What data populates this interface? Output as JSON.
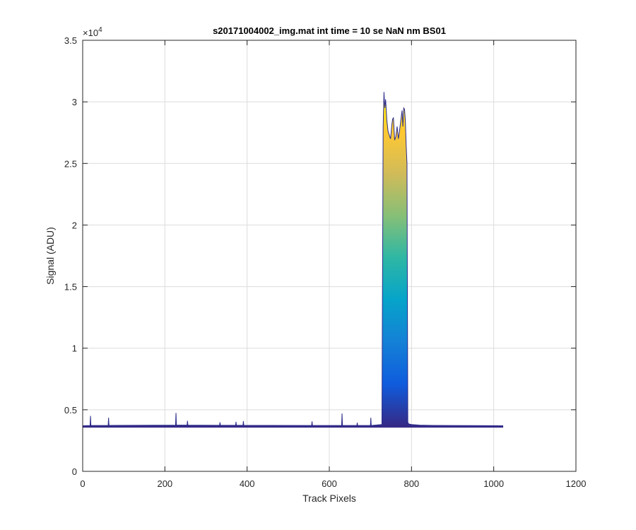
{
  "chart_data": {
    "type": "area",
    "title": "s20171004002_img.mat int time = 10 se  NaN nm BS01",
    "xlabel": "Track Pixels",
    "ylabel": "Signal (ADU)",
    "xlim": [
      0,
      1200
    ],
    "ylim": [
      0,
      35000
    ],
    "x_ticks": [
      0,
      200,
      400,
      600,
      800,
      1000,
      1200
    ],
    "x_tick_labels": [
      "0",
      "200",
      "400",
      "600",
      "800",
      "1000",
      "1200"
    ],
    "y_ticks": [
      0,
      5000,
      10000,
      15000,
      20000,
      25000,
      30000,
      35000
    ],
    "y_tick_labels": [
      "0",
      "0.5",
      "1",
      "1.5",
      "2",
      "2.5",
      "3",
      "3.5"
    ],
    "y_multiplier": "×10",
    "y_multiplier_exp": "4",
    "grid": true,
    "colormap": [
      "#352a87",
      "#0f5cdd",
      "#1481d6",
      "#06a4ca",
      "#2eb7a4",
      "#87bf77",
      "#d1bb59",
      "#fec832",
      "#f9fb0e"
    ],
    "baseline_color": "#2c2c8c",
    "series": [
      {
        "x": [
          0,
          18,
          19,
          20,
          62,
          63,
          64,
          226,
          227,
          228,
          254,
          255,
          256,
          333,
          334,
          335,
          372,
          373,
          374,
          390,
          391,
          392,
          557,
          558,
          559,
          630,
          631,
          632,
          667,
          668,
          669,
          700,
          701,
          702,
          728,
          731,
          733,
          735,
          737,
          740,
          743,
          746,
          749,
          752,
          754,
          756,
          759,
          762,
          765,
          768,
          771,
          774,
          777,
          779,
          781,
          783,
          785,
          787,
          789,
          791,
          793,
          800,
          820,
          850,
          1000,
          1023
        ],
        "y": [
          3700,
          3720,
          4500,
          3720,
          3730,
          4350,
          3730,
          3750,
          4750,
          3750,
          3750,
          4100,
          3750,
          3740,
          3980,
          3740,
          3740,
          4020,
          3740,
          3740,
          4080,
          3740,
          3720,
          4060,
          3720,
          3720,
          4700,
          3720,
          3720,
          3950,
          3720,
          3720,
          4350,
          3720,
          3800,
          28000,
          30800,
          29500,
          30200,
          28500,
          27600,
          27300,
          27000,
          28100,
          28600,
          28700,
          26900,
          27200,
          28000,
          27000,
          27700,
          28500,
          29300,
          28000,
          29500,
          29400,
          28500,
          26500,
          25000,
          4000,
          3850,
          3800,
          3750,
          3730,
          3710,
          3700
        ]
      }
    ]
  }
}
